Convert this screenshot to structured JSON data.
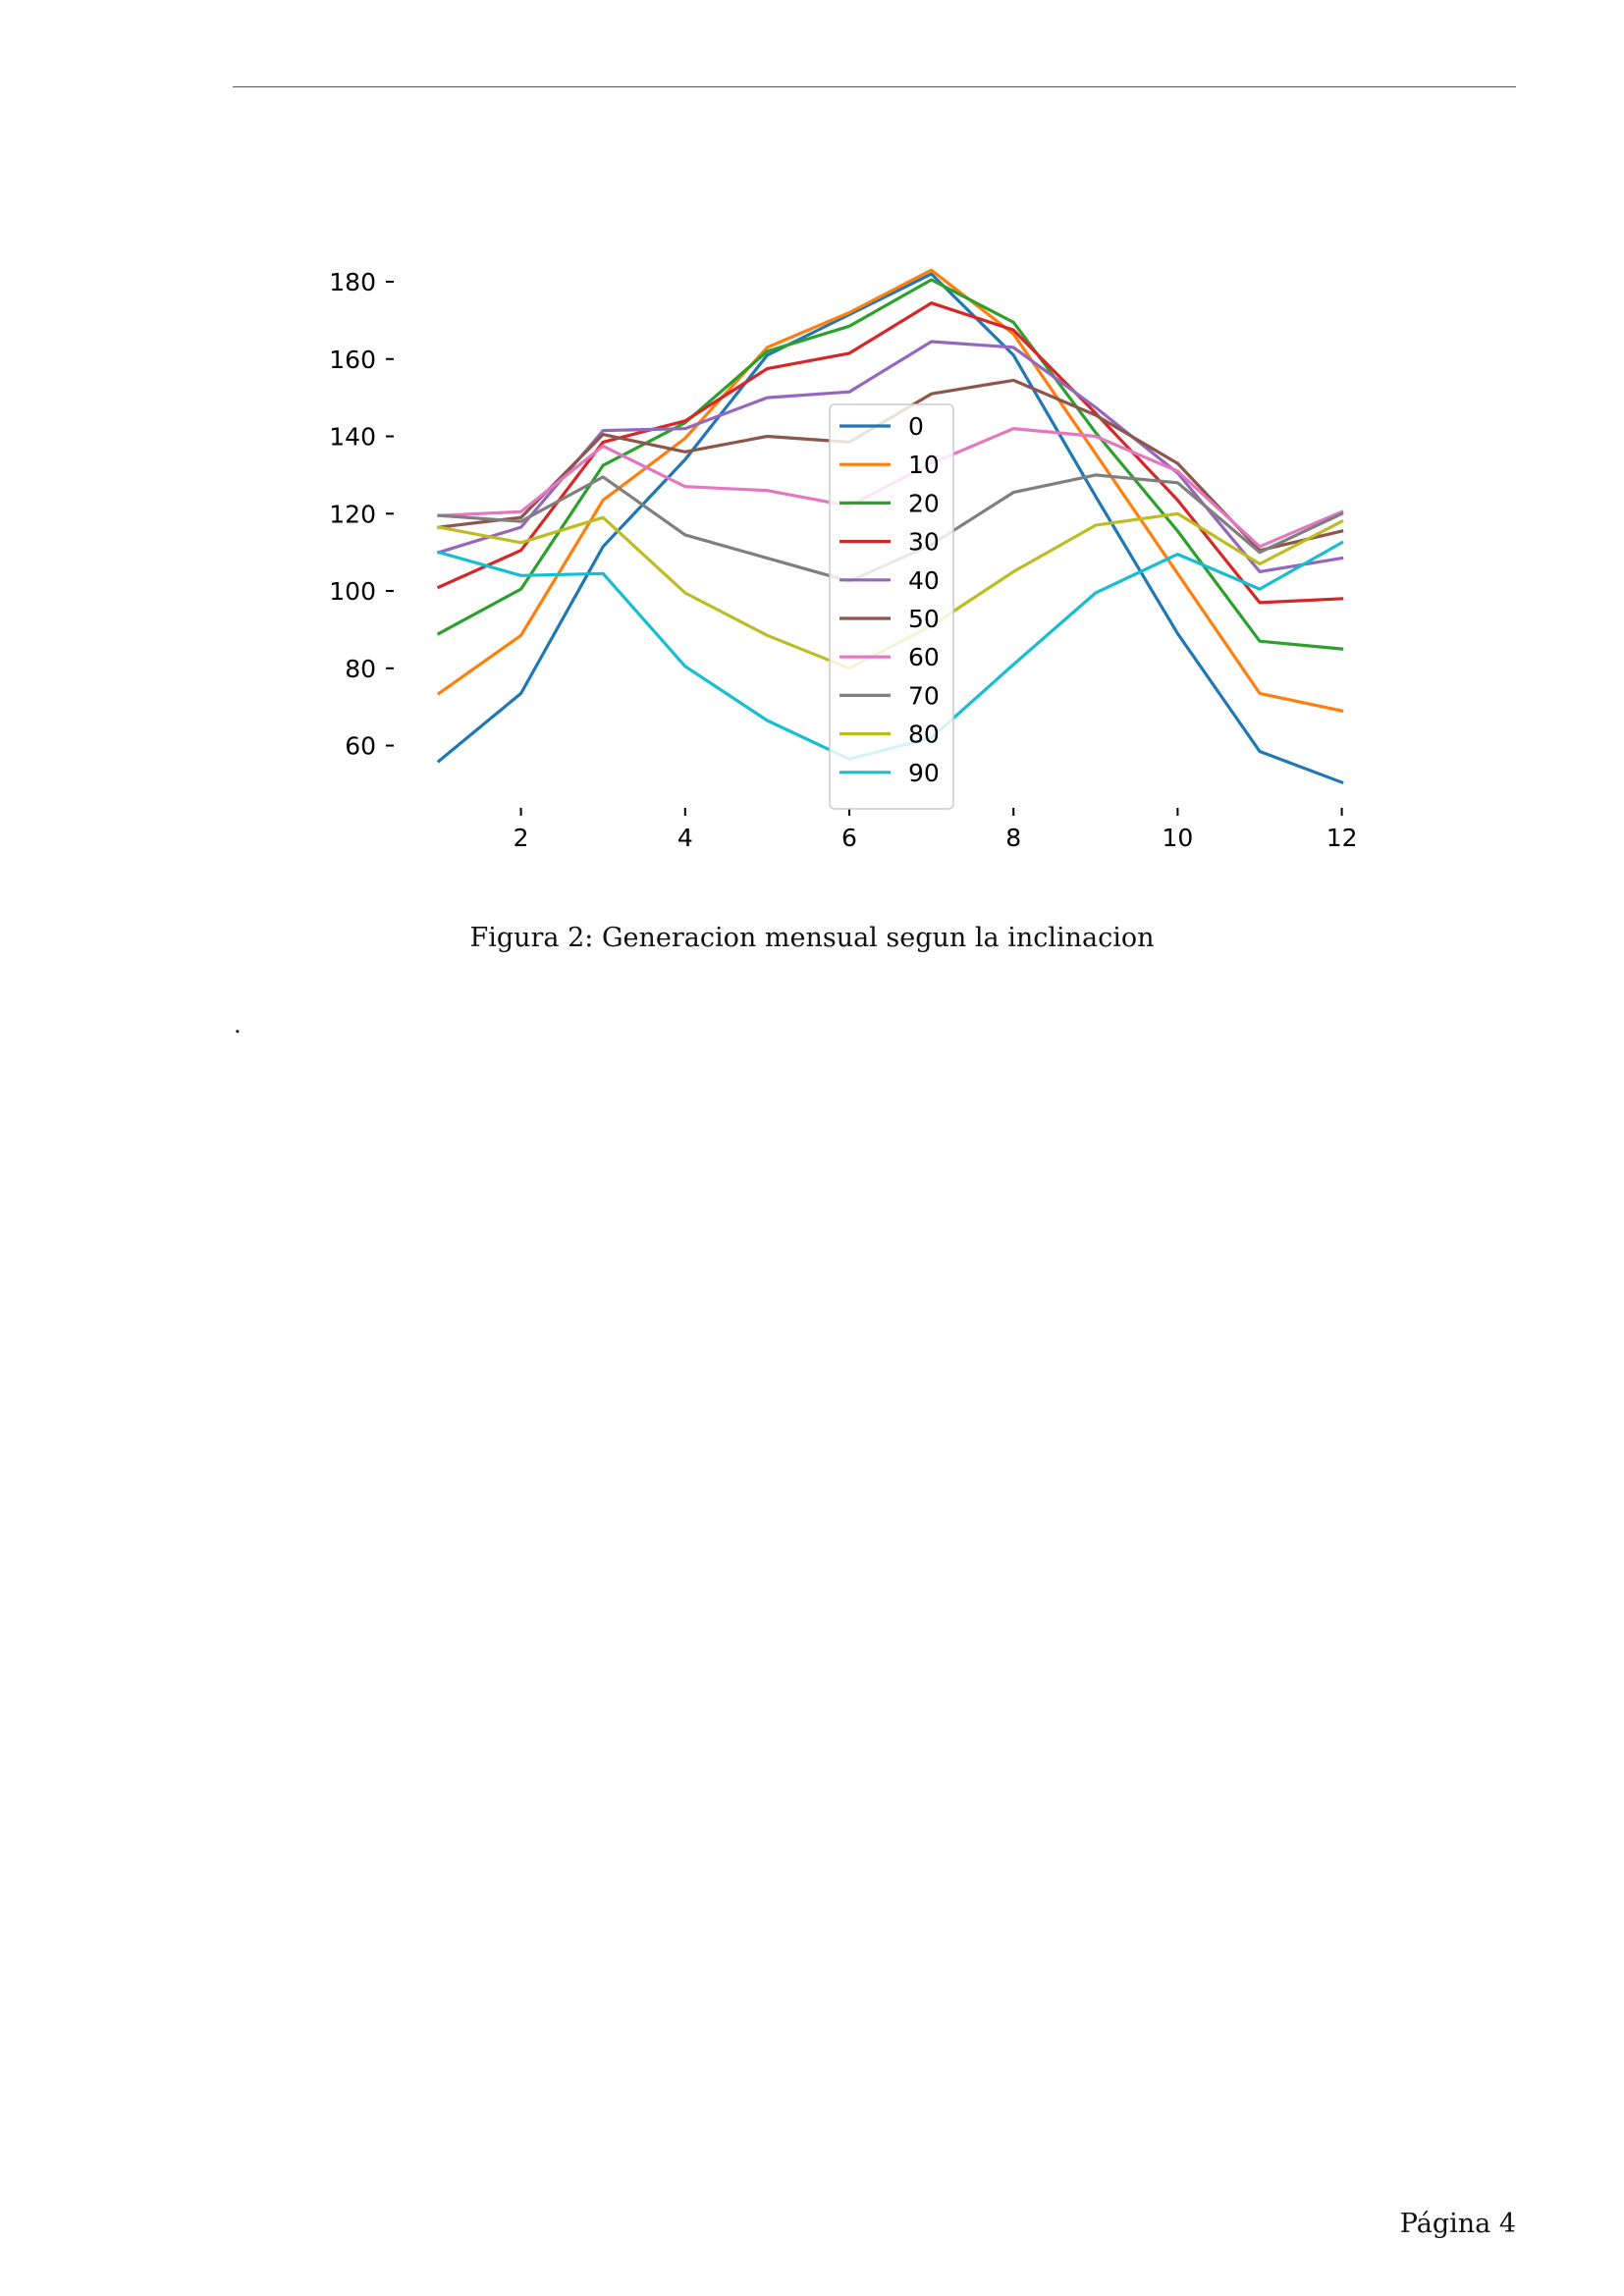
{
  "page": {
    "page_label": "Página 4",
    "dot": "."
  },
  "caption": "Figura 2: Generacion mensual segun la inclinacion",
  "chart_data": {
    "type": "line",
    "title": "",
    "xlabel": "",
    "ylabel": "",
    "x": [
      1,
      2,
      3,
      4,
      5,
      6,
      7,
      8,
      9,
      10,
      11,
      12
    ],
    "xticks": [
      2,
      4,
      6,
      8,
      10,
      12
    ],
    "yticks": [
      60,
      80,
      100,
      120,
      140,
      160,
      180
    ],
    "xlim": [
      0.2,
      12.6
    ],
    "ylim": [
      45,
      190
    ],
    "grid": false,
    "legend_position": "center",
    "series": [
      {
        "name": "0",
        "color": "#1f77b4",
        "values": [
          56,
          73.5,
          111.5,
          134,
          161,
          171.5,
          182,
          161,
          124.5,
          89,
          58.5,
          50.5
        ]
      },
      {
        "name": "10",
        "color": "#ff7f0e",
        "values": [
          73.5,
          88.5,
          123.5,
          139.5,
          163,
          172,
          183,
          166.5,
          135.5,
          104.5,
          73.5,
          69
        ]
      },
      {
        "name": "20",
        "color": "#2ca02c",
        "values": [
          89,
          100.5,
          132.5,
          143.5,
          162,
          168.5,
          180.5,
          169.5,
          141,
          115.5,
          87,
          85
        ]
      },
      {
        "name": "30",
        "color": "#d62728",
        "values": [
          101,
          110.5,
          138.5,
          144,
          157.5,
          161.5,
          174.5,
          167.5,
          146,
          123.5,
          97,
          98
        ]
      },
      {
        "name": "40",
        "color": "#9467bd",
        "values": [
          110,
          116.5,
          141.5,
          142,
          150,
          151.5,
          164.5,
          163,
          147.5,
          130.5,
          105,
          108.5
        ]
      },
      {
        "name": "50",
        "color": "#8c564b",
        "values": [
          116.5,
          119,
          140.5,
          136,
          140,
          138.5,
          151,
          154.5,
          145.5,
          133,
          110.5,
          115.5
        ]
      },
      {
        "name": "60",
        "color": "#e377c2",
        "values": [
          119.5,
          120.5,
          137.5,
          127,
          126,
          122,
          133,
          142,
          140,
          131,
          111.5,
          120.5
        ]
      },
      {
        "name": "70",
        "color": "#7f7f7f",
        "values": [
          119.5,
          118,
          129.5,
          114.5,
          108.5,
          102.5,
          112,
          125.5,
          130,
          128,
          110,
          120
        ]
      },
      {
        "name": "80",
        "color": "#bcbd22",
        "values": [
          116.5,
          112.5,
          119,
          99.5,
          88.5,
          80,
          91,
          105,
          117,
          120,
          107,
          118
        ]
      },
      {
        "name": "90",
        "color": "#17becf",
        "values": [
          110,
          104,
          104.5,
          80.5,
          66.5,
          56.5,
          62,
          81,
          99.5,
          109.5,
          100.5,
          112.5
        ]
      }
    ]
  }
}
